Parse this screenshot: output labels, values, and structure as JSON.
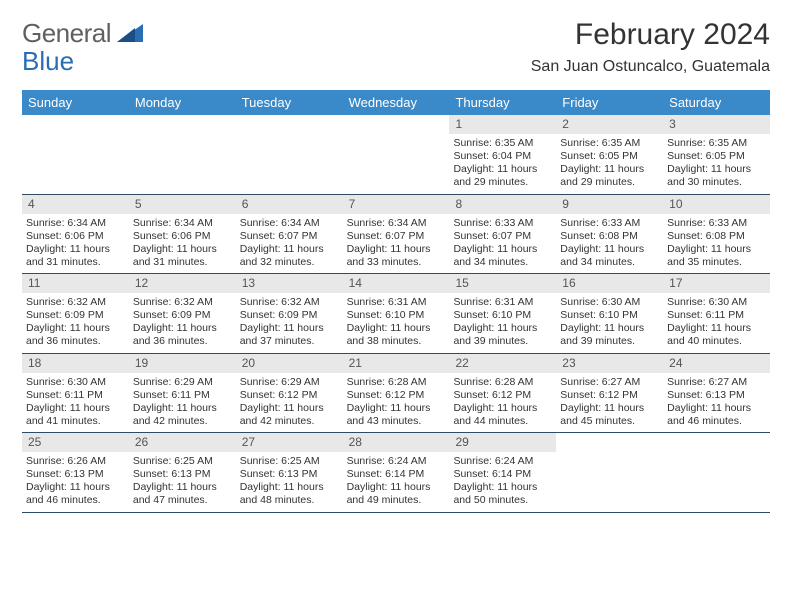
{
  "brand": {
    "part1": "General",
    "part2": "Blue"
  },
  "title": "February 2024",
  "location": "San Juan Ostuncalco, Guatemala",
  "colors": {
    "header_bg": "#3a89c9",
    "header_text": "#ffffff",
    "daynum_bg": "#e8e8e8",
    "week_border": "#2f4c66",
    "brand_blue": "#2a6db3",
    "brand_gray": "#606060"
  },
  "day_labels": [
    "Sunday",
    "Monday",
    "Tuesday",
    "Wednesday",
    "Thursday",
    "Friday",
    "Saturday"
  ],
  "weeks": [
    [
      {
        "n": "",
        "lines": []
      },
      {
        "n": "",
        "lines": []
      },
      {
        "n": "",
        "lines": []
      },
      {
        "n": "",
        "lines": []
      },
      {
        "n": "1",
        "lines": [
          "Sunrise: 6:35 AM",
          "Sunset: 6:04 PM",
          "Daylight: 11 hours and 29 minutes."
        ]
      },
      {
        "n": "2",
        "lines": [
          "Sunrise: 6:35 AM",
          "Sunset: 6:05 PM",
          "Daylight: 11 hours and 29 minutes."
        ]
      },
      {
        "n": "3",
        "lines": [
          "Sunrise: 6:35 AM",
          "Sunset: 6:05 PM",
          "Daylight: 11 hours and 30 minutes."
        ]
      }
    ],
    [
      {
        "n": "4",
        "lines": [
          "Sunrise: 6:34 AM",
          "Sunset: 6:06 PM",
          "Daylight: 11 hours and 31 minutes."
        ]
      },
      {
        "n": "5",
        "lines": [
          "Sunrise: 6:34 AM",
          "Sunset: 6:06 PM",
          "Daylight: 11 hours and 31 minutes."
        ]
      },
      {
        "n": "6",
        "lines": [
          "Sunrise: 6:34 AM",
          "Sunset: 6:07 PM",
          "Daylight: 11 hours and 32 minutes."
        ]
      },
      {
        "n": "7",
        "lines": [
          "Sunrise: 6:34 AM",
          "Sunset: 6:07 PM",
          "Daylight: 11 hours and 33 minutes."
        ]
      },
      {
        "n": "8",
        "lines": [
          "Sunrise: 6:33 AM",
          "Sunset: 6:07 PM",
          "Daylight: 11 hours and 34 minutes."
        ]
      },
      {
        "n": "9",
        "lines": [
          "Sunrise: 6:33 AM",
          "Sunset: 6:08 PM",
          "Daylight: 11 hours and 34 minutes."
        ]
      },
      {
        "n": "10",
        "lines": [
          "Sunrise: 6:33 AM",
          "Sunset: 6:08 PM",
          "Daylight: 11 hours and 35 minutes."
        ]
      }
    ],
    [
      {
        "n": "11",
        "lines": [
          "Sunrise: 6:32 AM",
          "Sunset: 6:09 PM",
          "Daylight: 11 hours and 36 minutes."
        ]
      },
      {
        "n": "12",
        "lines": [
          "Sunrise: 6:32 AM",
          "Sunset: 6:09 PM",
          "Daylight: 11 hours and 36 minutes."
        ]
      },
      {
        "n": "13",
        "lines": [
          "Sunrise: 6:32 AM",
          "Sunset: 6:09 PM",
          "Daylight: 11 hours and 37 minutes."
        ]
      },
      {
        "n": "14",
        "lines": [
          "Sunrise: 6:31 AM",
          "Sunset: 6:10 PM",
          "Daylight: 11 hours and 38 minutes."
        ]
      },
      {
        "n": "15",
        "lines": [
          "Sunrise: 6:31 AM",
          "Sunset: 6:10 PM",
          "Daylight: 11 hours and 39 minutes."
        ]
      },
      {
        "n": "16",
        "lines": [
          "Sunrise: 6:30 AM",
          "Sunset: 6:10 PM",
          "Daylight: 11 hours and 39 minutes."
        ]
      },
      {
        "n": "17",
        "lines": [
          "Sunrise: 6:30 AM",
          "Sunset: 6:11 PM",
          "Daylight: 11 hours and 40 minutes."
        ]
      }
    ],
    [
      {
        "n": "18",
        "lines": [
          "Sunrise: 6:30 AM",
          "Sunset: 6:11 PM",
          "Daylight: 11 hours and 41 minutes."
        ]
      },
      {
        "n": "19",
        "lines": [
          "Sunrise: 6:29 AM",
          "Sunset: 6:11 PM",
          "Daylight: 11 hours and 42 minutes."
        ]
      },
      {
        "n": "20",
        "lines": [
          "Sunrise: 6:29 AM",
          "Sunset: 6:12 PM",
          "Daylight: 11 hours and 42 minutes."
        ]
      },
      {
        "n": "21",
        "lines": [
          "Sunrise: 6:28 AM",
          "Sunset: 6:12 PM",
          "Daylight: 11 hours and 43 minutes."
        ]
      },
      {
        "n": "22",
        "lines": [
          "Sunrise: 6:28 AM",
          "Sunset: 6:12 PM",
          "Daylight: 11 hours and 44 minutes."
        ]
      },
      {
        "n": "23",
        "lines": [
          "Sunrise: 6:27 AM",
          "Sunset: 6:12 PM",
          "Daylight: 11 hours and 45 minutes."
        ]
      },
      {
        "n": "24",
        "lines": [
          "Sunrise: 6:27 AM",
          "Sunset: 6:13 PM",
          "Daylight: 11 hours and 46 minutes."
        ]
      }
    ],
    [
      {
        "n": "25",
        "lines": [
          "Sunrise: 6:26 AM",
          "Sunset: 6:13 PM",
          "Daylight: 11 hours and 46 minutes."
        ]
      },
      {
        "n": "26",
        "lines": [
          "Sunrise: 6:25 AM",
          "Sunset: 6:13 PM",
          "Daylight: 11 hours and 47 minutes."
        ]
      },
      {
        "n": "27",
        "lines": [
          "Sunrise: 6:25 AM",
          "Sunset: 6:13 PM",
          "Daylight: 11 hours and 48 minutes."
        ]
      },
      {
        "n": "28",
        "lines": [
          "Sunrise: 6:24 AM",
          "Sunset: 6:14 PM",
          "Daylight: 11 hours and 49 minutes."
        ]
      },
      {
        "n": "29",
        "lines": [
          "Sunrise: 6:24 AM",
          "Sunset: 6:14 PM",
          "Daylight: 11 hours and 50 minutes."
        ]
      },
      {
        "n": "",
        "lines": []
      },
      {
        "n": "",
        "lines": []
      }
    ]
  ]
}
